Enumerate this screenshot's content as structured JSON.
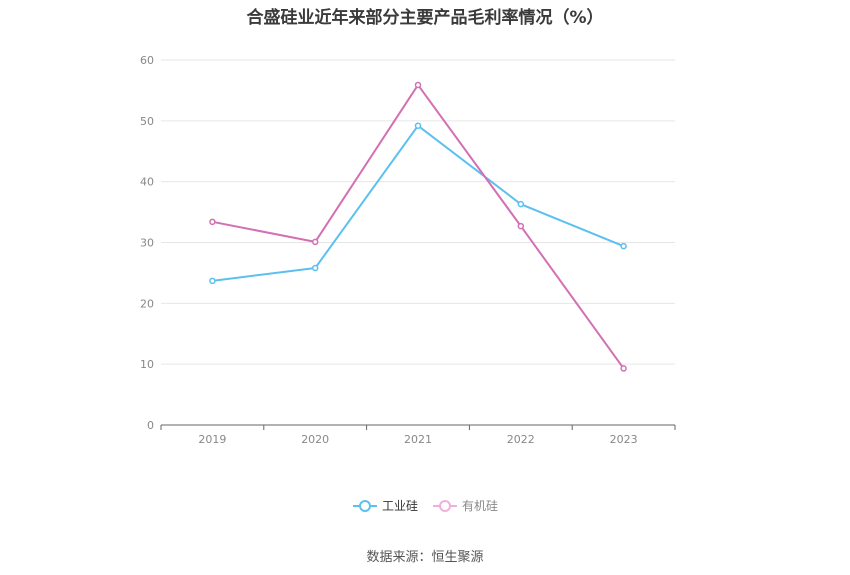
{
  "chart_data": {
    "type": "line",
    "title": "合盛硅业近年来部分主要产品毛利率情况（%）",
    "categories": [
      "2019",
      "2020",
      "2021",
      "2022",
      "2023"
    ],
    "series": [
      {
        "name": "工业硅",
        "color": "#5bc0f0",
        "values": [
          23.7,
          25.8,
          49.2,
          36.3,
          29.4
        ]
      },
      {
        "name": "有机硅",
        "color": "#d36fb3",
        "values": [
          33.4,
          30.1,
          55.9,
          32.7,
          9.3
        ]
      }
    ],
    "ylim": [
      0,
      60
    ],
    "yticks": [
      0,
      10,
      20,
      30,
      40,
      50,
      60
    ],
    "grid": true,
    "legend_position": "bottom"
  },
  "legend": {
    "item1": "工业硅",
    "item2": "有机硅"
  },
  "source": "数据来源：恒生聚源"
}
